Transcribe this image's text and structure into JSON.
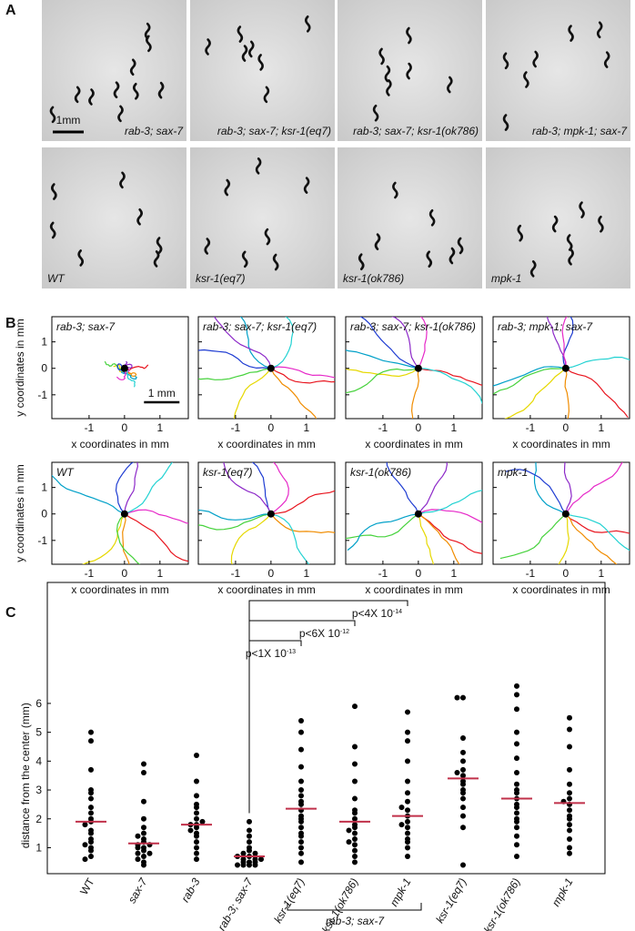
{
  "panel_a": {
    "label": "A",
    "scale_bar": "1mm",
    "images": [
      "rab-3; sax-7",
      "rab-3; sax-7; ksr-1(eq7)",
      "rab-3; sax-7; ksr-1(ok786)",
      "rab-3; mpk-1; sax-7",
      "WT",
      "ksr-1(eq7)",
      "ksr-1(ok786)",
      "mpk-1"
    ]
  },
  "panel_b": {
    "label": "B",
    "scale_bar": "1 mm",
    "x_axis_label": "x coordinates in mm",
    "y_axis_label": "y coordinates in mm",
    "xlim": [
      -2.05,
      1.8
    ],
    "ylim": [
      -1.9,
      1.95
    ],
    "xticks": [
      -1,
      0,
      1
    ],
    "yticks": [
      -1,
      0,
      1
    ],
    "plots": [
      "rab-3; sax-7",
      "rab-3; sax-7; ksr-1(eq7)",
      "rab-3; sax-7; ksr-1(ok786)",
      "rab-3; mpk-1; sax-7",
      "WT",
      "ksr-1(eq7)",
      "ksr-1(ok786)",
      "mpk-1"
    ]
  },
  "chart_data": {
    "type": "dot",
    "label": "C",
    "y_axis_label": "distance from the center (mm)",
    "categories": [
      "WT",
      "sax-7",
      "rab-3",
      "rab-3; sax-7",
      "ksr-1(eq7)",
      "ksr-1(ok786)",
      "mpk-1",
      "ksr-1(eq7)",
      "ksr-1(ok786)",
      "mpk-1"
    ],
    "group_label": "rab-3; sax-7",
    "comparisons": [
      {
        "label": "p<1X 10",
        "exponent": "-13"
      },
      {
        "label": "p<6X 10",
        "exponent": "-12"
      },
      {
        "label": "p<4X 10",
        "exponent": "-14"
      }
    ],
    "ylim": [
      0.1,
      8.3
    ],
    "yticks": [
      1,
      2,
      3,
      4,
      5,
      6
    ],
    "color": "#000000",
    "mean_color": "#c0304a",
    "means": [
      1.9,
      1.15,
      1.8,
      0.7,
      2.35,
      1.9,
      2.1,
      3.4,
      2.7,
      2.55
    ],
    "values": [
      [
        5.0,
        4.7,
        3.7,
        3.0,
        2.7,
        2.4,
        2.2,
        2.0,
        1.9,
        1.8,
        1.6,
        1.5,
        1.3,
        1.2,
        1.0,
        0.9,
        0.7,
        0.6,
        2.9,
        1.1
      ],
      [
        3.9,
        3.6,
        2.6,
        2.0,
        1.7,
        1.5,
        1.3,
        1.2,
        1.1,
        1.0,
        1.0,
        0.9,
        0.8,
        0.7,
        0.6,
        0.5,
        0.4,
        1.4,
        1.1,
        0.8
      ],
      [
        4.2,
        3.3,
        2.8,
        2.5,
        2.2,
        2.0,
        1.8,
        1.8,
        1.7,
        1.5,
        1.4,
        1.2,
        1.0,
        0.8,
        0.6,
        2.4,
        1.9,
        1.6
      ],
      [
        1.9,
        1.6,
        1.4,
        1.2,
        1.0,
        0.9,
        0.8,
        0.8,
        0.7,
        0.6,
        0.6,
        0.5,
        0.5,
        0.4,
        0.4,
        0.4,
        0.4,
        0.7,
        0.6,
        0.5
      ],
      [
        5.4,
        5.0,
        4.4,
        3.8,
        3.3,
        3.0,
        2.8,
        2.5,
        2.3,
        2.1,
        1.9,
        1.7,
        1.5,
        1.2,
        1.0,
        0.8,
        0.5,
        2.6,
        2.0,
        1.4
      ],
      [
        5.9,
        4.5,
        3.9,
        3.3,
        2.7,
        2.3,
        2.0,
        1.8,
        1.7,
        1.5,
        1.3,
        1.1,
        0.9,
        0.7,
        0.5,
        2.2,
        1.6,
        1.2
      ],
      [
        5.7,
        5.0,
        4.7,
        4.0,
        3.3,
        2.9,
        2.6,
        2.3,
        2.1,
        1.9,
        1.7,
        1.5,
        1.2,
        1.0,
        0.7,
        2.4,
        1.8,
        1.3
      ],
      [
        6.2,
        6.2,
        4.8,
        4.3,
        4.0,
        3.7,
        3.5,
        3.3,
        3.2,
        3.0,
        2.7,
        2.4,
        2.1,
        1.7,
        0.4,
        3.6,
        2.9
      ],
      [
        6.6,
        6.3,
        5.8,
        5.0,
        4.6,
        4.1,
        3.6,
        3.2,
        2.9,
        2.7,
        2.5,
        2.2,
        2.0,
        1.7,
        1.4,
        1.1,
        0.7,
        3.0,
        2.4,
        1.9
      ],
      [
        5.5,
        5.1,
        4.5,
        3.7,
        3.2,
        2.9,
        2.7,
        2.5,
        2.3,
        2.1,
        1.8,
        1.6,
        1.3,
        1.0,
        0.8,
        2.6,
        2.0
      ]
    ]
  }
}
